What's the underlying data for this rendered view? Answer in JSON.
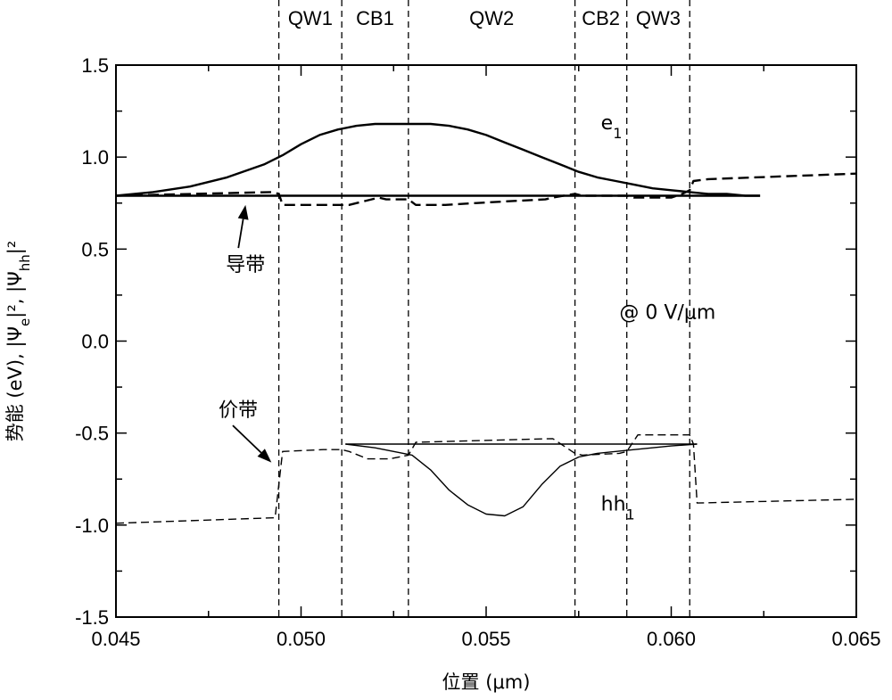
{
  "chart_data": {
    "type": "line",
    "xlabel": "位置 (μm)",
    "ylabel": "势能 (eV), |Ψe|², |Ψhh|²",
    "ylabel_parts": {
      "prefix": "势能 (eV), |Ψ",
      "sub_e": "e",
      "mid": "|², |Ψ",
      "sub_hh": "hh",
      "suffix": "|²"
    },
    "xlim": [
      0.045,
      0.065
    ],
    "ylim": [
      -1.5,
      1.5
    ],
    "x_ticks": [
      0.045,
      0.05,
      0.055,
      0.06,
      0.065
    ],
    "x_tick_labels": [
      "0.045",
      "0.050",
      "0.055",
      "0.060",
      "0.065"
    ],
    "y_ticks": [
      1.5,
      1.0,
      0.5,
      0.0,
      -0.5,
      -1.0,
      -1.5
    ],
    "y_tick_labels": [
      "1.5",
      "1.0",
      "0.5",
      "0.0",
      "-0.5",
      "-1.0",
      "-1.5"
    ],
    "grid": false,
    "regions": [
      {
        "label": "QW1",
        "x_start": 0.0494,
        "x_end": 0.0511
      },
      {
        "label": "CB1",
        "x_start": 0.0511,
        "x_end": 0.0529
      },
      {
        "label": "QW2",
        "x_start": 0.0529,
        "x_end": 0.0574
      },
      {
        "label": "CB2",
        "x_start": 0.0574,
        "x_end": 0.0588
      },
      {
        "label": "QW3",
        "x_start": 0.0588,
        "x_end": 0.0605
      }
    ],
    "region_boundaries": [
      0.0494,
      0.0511,
      0.0529,
      0.0574,
      0.0588,
      0.0605
    ],
    "series": [
      {
        "style": "dashed",
        "weight": "bold",
        "x": [
          0.045,
          0.0492,
          0.0494,
          0.0495,
          0.0503,
          0.0505,
          0.0507,
          0.0513,
          0.0521,
          0.0523,
          0.0529,
          0.0531,
          0.0539,
          0.0547,
          0.0556,
          0.0566,
          0.0568,
          0.0574,
          0.0576,
          0.0588,
          0.059,
          0.06,
          0.0603,
          0.0605,
          0.0606,
          0.061,
          0.065
        ],
        "y": [
          0.79,
          0.81,
          0.8,
          0.74,
          0.74,
          0.74,
          0.74,
          0.74,
          0.78,
          0.77,
          0.77,
          0.74,
          0.74,
          0.75,
          0.76,
          0.77,
          0.78,
          0.8,
          0.79,
          0.79,
          0.78,
          0.78,
          0.8,
          0.82,
          0.87,
          0.88,
          0.91
        ]
      },
      {
        "style": "solid",
        "weight": "bold",
        "x": [
          0.045,
          0.0624
        ],
        "y": [
          0.79,
          0.79
        ]
      },
      {
        "style": "solid",
        "weight": "bold",
        "x": [
          0.045,
          0.046,
          0.047,
          0.048,
          0.049,
          0.0495,
          0.05,
          0.0505,
          0.051,
          0.0515,
          0.052,
          0.0525,
          0.053,
          0.0535,
          0.054,
          0.0545,
          0.055,
          0.0555,
          0.056,
          0.0565,
          0.057,
          0.0575,
          0.058,
          0.0585,
          0.059,
          0.0595,
          0.06,
          0.0605,
          0.061,
          0.0615,
          0.062,
          0.0624
        ],
        "y": [
          0.79,
          0.81,
          0.84,
          0.89,
          0.96,
          1.01,
          1.07,
          1.12,
          1.15,
          1.17,
          1.18,
          1.18,
          1.18,
          1.18,
          1.17,
          1.15,
          1.12,
          1.08,
          1.04,
          1.0,
          0.96,
          0.92,
          0.89,
          0.87,
          0.85,
          0.83,
          0.82,
          0.81,
          0.8,
          0.8,
          0.79,
          0.79
        ]
      },
      {
        "style": "dashed",
        "weight": "thin",
        "x": [
          0.045,
          0.0493,
          0.0495,
          0.0506,
          0.0511,
          0.0513,
          0.0518,
          0.0524,
          0.0529,
          0.0531,
          0.0568,
          0.0574,
          0.0576,
          0.0586,
          0.0588,
          0.0591,
          0.0605,
          0.0606,
          0.0607,
          0.065
        ],
        "y": [
          -0.99,
          -0.96,
          -0.6,
          -0.59,
          -0.59,
          -0.6,
          -0.64,
          -0.64,
          -0.62,
          -0.55,
          -0.53,
          -0.61,
          -0.62,
          -0.61,
          -0.6,
          -0.51,
          -0.51,
          -0.56,
          -0.88,
          -0.86
        ]
      },
      {
        "style": "solid",
        "weight": "thin",
        "x": [
          0.0512,
          0.0607
        ],
        "y": [
          -0.56,
          -0.56
        ]
      },
      {
        "style": "solid",
        "weight": "thin",
        "x": [
          0.0512,
          0.052,
          0.053,
          0.0535,
          0.054,
          0.0545,
          0.055,
          0.0555,
          0.056,
          0.0565,
          0.057,
          0.0575,
          0.058,
          0.059,
          0.06,
          0.0607
        ],
        "y": [
          -0.56,
          -0.58,
          -0.62,
          -0.7,
          -0.81,
          -0.89,
          -0.94,
          -0.95,
          -0.9,
          -0.78,
          -0.68,
          -0.63,
          -0.61,
          -0.59,
          -0.57,
          -0.56
        ]
      }
    ],
    "annotations": {
      "e1": {
        "main": "e",
        "sub": "1",
        "x": 0.0581,
        "y": 1.15
      },
      "hh1": {
        "main": "hh",
        "sub": "1",
        "x": 0.0581,
        "y": -0.92
      },
      "field": {
        "text": "@ 0 V/μm",
        "x": 0.0586,
        "y": 0.12
      },
      "conduction_band": {
        "text": "导带",
        "x": 0.0485,
        "y": 0.38,
        "arrow_to": [
          0.0485,
          0.74
        ]
      },
      "valence_band": {
        "text": "价带",
        "x": 0.0483,
        "y": -0.41,
        "arrow_to": [
          0.0492,
          -0.66
        ]
      }
    }
  }
}
